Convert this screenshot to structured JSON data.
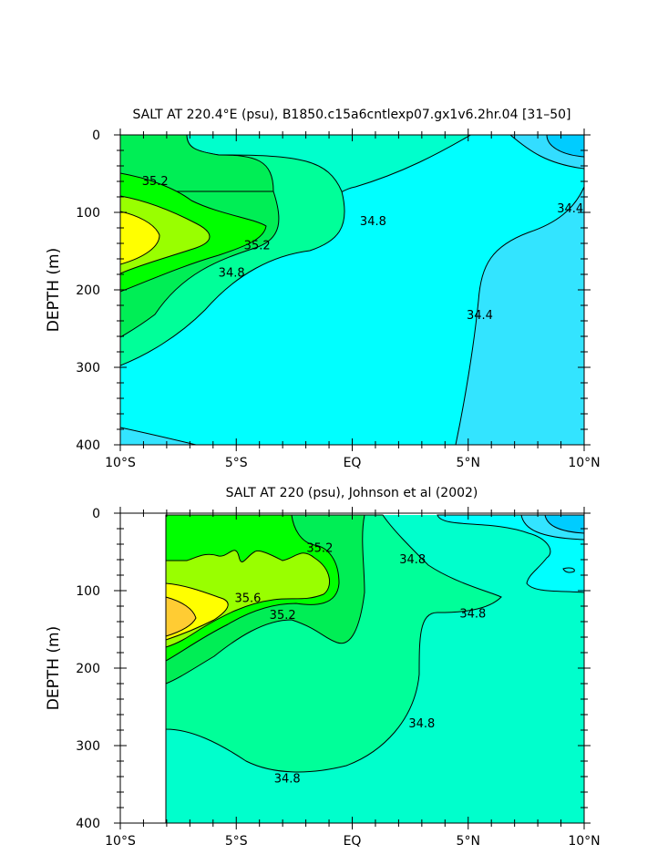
{
  "chart_data": [
    {
      "type": "contour",
      "title": "SALT AT 220.4°E (psu), B1850.c15a6cntlexp07.gx1v6.2hr.04 [31–50]",
      "ylabel": "DEPTH (m)",
      "xlabel": "",
      "xlim": [
        -10,
        10
      ],
      "ylim": [
        0,
        400
      ],
      "y_inverted": true,
      "x_ticks": [
        -10,
        -5,
        0,
        5,
        10
      ],
      "x_tick_labels": [
        "10°S",
        "5°S",
        "EQ",
        "5°N",
        "10°N"
      ],
      "y_ticks": [
        0,
        100,
        200,
        300,
        400
      ],
      "y_tick_labels": [
        "0",
        "100",
        "200",
        "300",
        "400"
      ],
      "contour_interval": 0.2,
      "contour_labels": [
        {
          "text": "35.2",
          "x": -8.5,
          "y": 60
        },
        {
          "text": "35.2",
          "x": -4.1,
          "y": 143
        },
        {
          "text": "34.8",
          "x": -5.2,
          "y": 178
        },
        {
          "text": "34.8",
          "x": 0.9,
          "y": 112
        },
        {
          "text": "34.4",
          "x": 9.4,
          "y": 95
        },
        {
          "text": "34.4",
          "x": 5.5,
          "y": 233
        }
      ],
      "fill_colors": {
        "lt_34_0": "#00ccff",
        "34_0_34_2": "#33ddff",
        "34_2_34_4": "#33e4ff",
        "34_4_34_6": "#00ffff",
        "34_6_34_8": "#00ffcc",
        "34_8_35_0": "#00ff99",
        "35_0_35_2": "#00ee55",
        "35_2_35_4": "#00ff00",
        "35_4_35_6": "#99ff00",
        "gt_35_6": "#ffff00"
      }
    },
    {
      "type": "contour",
      "title": "SALT AT 220 (psu), Johnson et al (2002)",
      "ylabel": "DEPTH (m)",
      "xlabel": "",
      "xlim": [
        -10,
        10
      ],
      "ylim": [
        0,
        400
      ],
      "y_inverted": true,
      "data_xmin": -8,
      "x_ticks": [
        -10,
        -5,
        0,
        5,
        10
      ],
      "x_tick_labels": [
        "10°S",
        "5°S",
        "EQ",
        "5°N",
        "10°N"
      ],
      "y_ticks": [
        0,
        100,
        200,
        300,
        400
      ],
      "y_tick_labels": [
        "0",
        "100",
        "200",
        "300",
        "400"
      ],
      "contour_interval": 0.2,
      "contour_labels": [
        {
          "text": "35.2",
          "x": -1.4,
          "y": 45
        },
        {
          "text": "35.6",
          "x": -4.5,
          "y": 110
        },
        {
          "text": "35.2",
          "x": -3.0,
          "y": 132
        },
        {
          "text": "34.8",
          "x": 2.6,
          "y": 60
        },
        {
          "text": "34.8",
          "x": 5.2,
          "y": 130
        },
        {
          "text": "34.8",
          "x": 3.0,
          "y": 272
        },
        {
          "text": "34.8",
          "x": -2.8,
          "y": 343
        }
      ],
      "fill_colors": {
        "lt_34_0": "#00ccff",
        "34_0_34_2": "#33ddff",
        "34_2_34_4": "#33e4ff",
        "34_4_34_6": "#00ffff",
        "34_6_34_8": "#00ffcc",
        "34_8_35_0": "#00ff99",
        "35_0_35_2": "#00ee55",
        "35_2_35_4": "#00ff00",
        "35_4_35_6": "#99ff00",
        "35_6_35_8": "#ffff00",
        "gt_35_8": "#ffcc33"
      }
    }
  ]
}
